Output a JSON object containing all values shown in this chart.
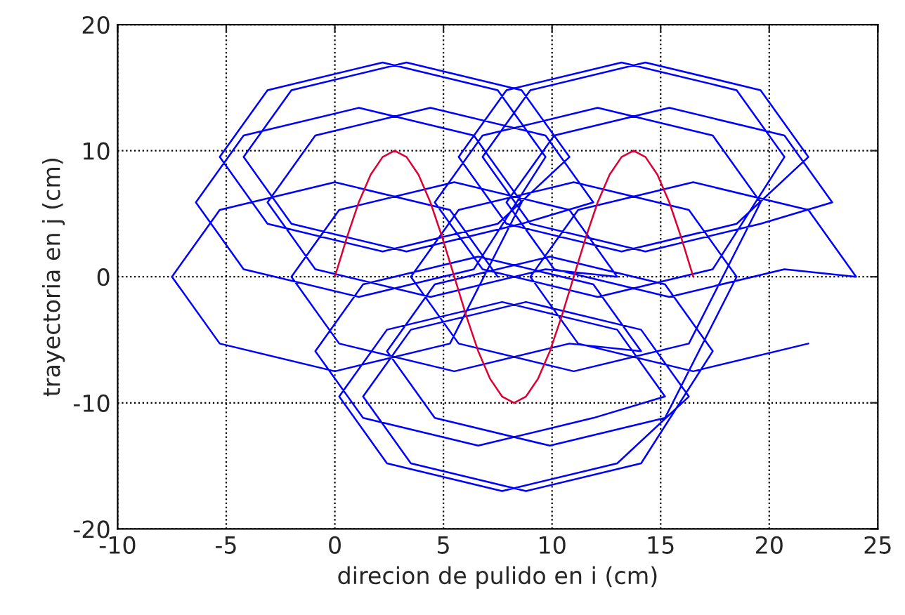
{
  "chart_data": {
    "type": "line",
    "xlabel": "direcion de pulido en i (cm)",
    "ylabel": "trayectoria en j (cm)",
    "xlim": [
      -10,
      25
    ],
    "xticks": [
      -10,
      -5,
      0,
      5,
      10,
      15,
      20,
      25
    ],
    "ylim": [
      -20,
      20
    ],
    "yticks": [
      -20,
      -10,
      0,
      10,
      20
    ],
    "grid": true,
    "marker": "none",
    "line_style": "solid",
    "series": [
      {
        "color": "#0000ff",
        "x": [
          7.5,
          5.3,
          0,
          -5.3,
          -7.5,
          -5.3,
          0,
          5.3,
          8.6,
          6.4,
          1.1,
          -4.2,
          -6.4,
          -4.2,
          1.1,
          6.4,
          9.7,
          7.5,
          2.2,
          -3.1,
          -5.3,
          -3.1,
          2.2,
          7.5,
          10.8,
          8.6,
          3.3,
          -2,
          -4.2,
          -2,
          3.3,
          8.6,
          11.9,
          9.7,
          4.4,
          -0.9,
          -3.1,
          -0.9,
          4.4,
          9.7,
          13,
          10.8,
          5.5,
          0.2,
          -2,
          0.2,
          5.5,
          10.8,
          14.1,
          11.9,
          6.6,
          1.3,
          -0.9,
          1.3,
          6.6,
          11.9,
          15.2,
          13,
          7.7,
          2.4,
          0.2,
          2.4,
          7.7,
          13,
          16.3,
          14.1,
          8.8,
          3.5,
          1.3,
          3.5,
          8.8,
          14.1,
          17.4,
          15.2,
          9.9,
          4.6,
          2.4,
          4.6,
          9.9,
          15.2,
          18.5,
          16.3,
          11,
          5.7,
          3.5,
          5.7,
          11,
          16.3,
          19.6,
          17.4,
          12.1,
          6.8,
          4.6,
          6.8,
          12.1,
          17.4,
          20.7,
          18.5,
          13.2,
          7.9,
          5.7,
          7.9,
          13.2,
          18.5,
          21.8,
          19.6,
          14.3,
          9,
          6.8,
          9,
          14.3,
          19.6,
          22.9,
          20.7,
          15.4,
          10.1,
          7.9,
          10.1,
          15.4,
          20.7,
          24,
          21.8,
          16.5,
          11.2,
          9,
          11.2,
          16.5,
          21.8
        ],
        "values": [
          0,
          5.3,
          7.5,
          5.3,
          0,
          -5.3,
          -7.5,
          -5.3,
          5.9,
          11.2,
          13.4,
          11.2,
          5.9,
          0.6,
          -1.6,
          0.6,
          9.5,
          14.8,
          17,
          14.8,
          9.5,
          4.2,
          2,
          4.2,
          9.5,
          14.8,
          17,
          14.8,
          9.5,
          4.2,
          2,
          4.2,
          5.9,
          11.2,
          13.4,
          11.2,
          5.9,
          0.6,
          -1.6,
          0.6,
          0,
          5.3,
          7.5,
          5.3,
          0,
          -5.3,
          -7.5,
          -5.3,
          -5.9,
          -0.6,
          1.6,
          -0.6,
          -5.9,
          -11.2,
          -13.4,
          -11.2,
          -9.5,
          -4.2,
          -2,
          -4.2,
          -9.5,
          -14.8,
          -17,
          -14.8,
          -9.5,
          -4.2,
          -2,
          -4.2,
          -9.5,
          -14.8,
          -17,
          -14.8,
          -5.9,
          -0.6,
          1.6,
          -0.6,
          -5.9,
          -11.2,
          -13.4,
          -11.2,
          0,
          5.3,
          7.5,
          5.3,
          0,
          -5.3,
          -7.5,
          -5.3,
          5.9,
          11.2,
          13.4,
          11.2,
          5.9,
          0.6,
          -1.6,
          0.6,
          9.5,
          14.8,
          17,
          14.8,
          9.5,
          4.2,
          2,
          4.2,
          9.5,
          14.8,
          17,
          14.8,
          9.5,
          4.2,
          2,
          4.2,
          5.9,
          11.2,
          13.4,
          11.2,
          5.9,
          0.6,
          -1.6,
          0.6,
          0,
          5.3,
          7.5,
          5.3,
          0,
          -5.3,
          -7.5,
          -5.3
        ]
      },
      {
        "color": "#dd0033",
        "x": [
          0,
          0.55,
          1.1,
          1.65,
          2.2,
          2.75,
          3.3,
          3.85,
          4.4,
          4.95,
          5.5,
          6.05,
          6.6,
          7.15,
          7.7,
          8.25,
          8.8,
          9.35,
          9.9,
          10.45,
          11,
          11.55,
          12.1,
          12.65,
          13.2,
          13.75,
          14.3,
          14.85,
          15.4,
          15.95,
          16.5
        ],
        "values": [
          0,
          3.1,
          5.9,
          8.1,
          9.5,
          10,
          9.5,
          8.1,
          5.9,
          3.1,
          0,
          -3.1,
          -5.9,
          -8.1,
          -9.5,
          -10,
          -9.5,
          -8.1,
          -5.9,
          -3.1,
          0,
          3.1,
          5.9,
          8.1,
          9.5,
          10,
          9.5,
          8.1,
          5.9,
          3.1,
          0
        ]
      }
    ]
  }
}
